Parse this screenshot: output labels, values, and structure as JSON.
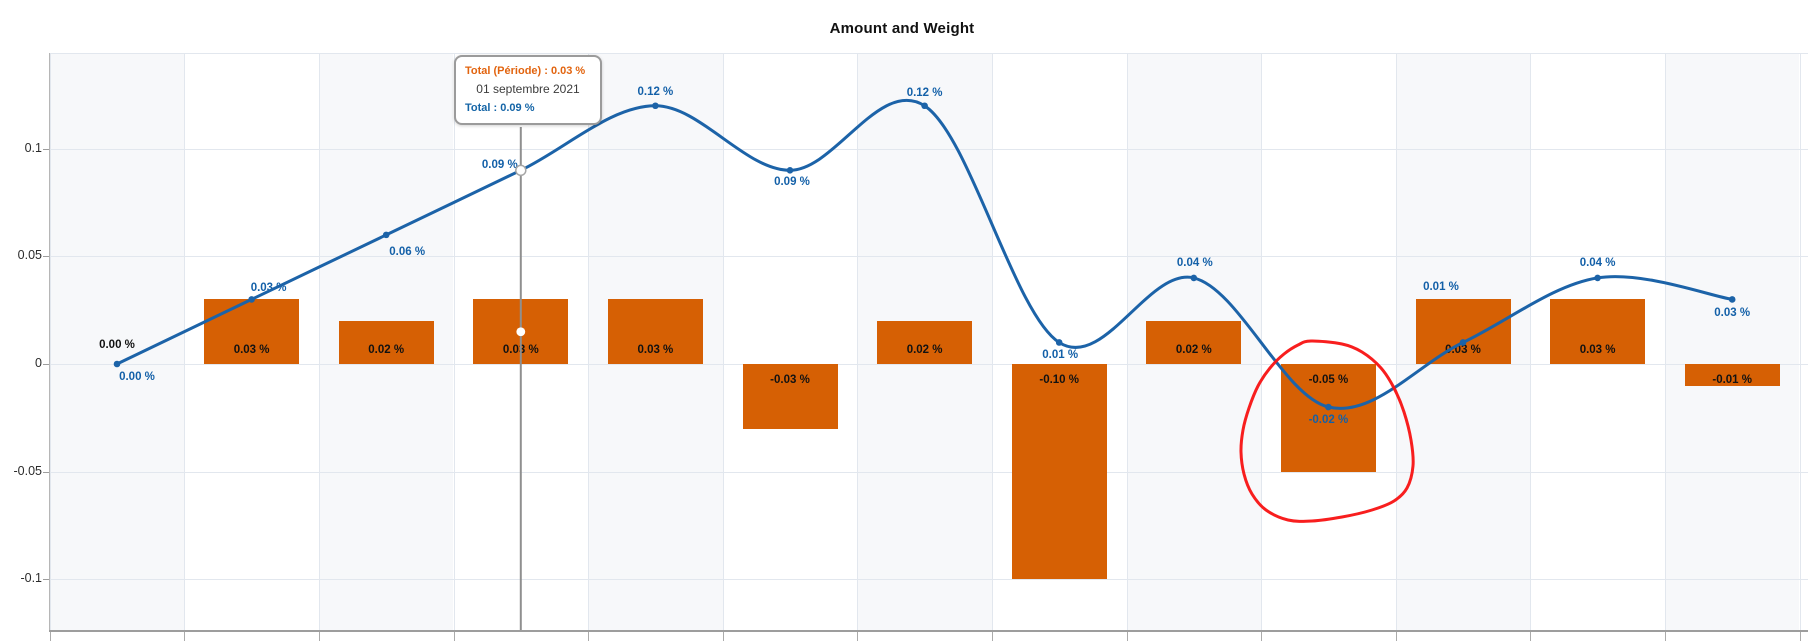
{
  "title": "Amount and Weight",
  "tooltip": {
    "series1_label": "Total (Période) : 0.03 %",
    "date": "01 septembre 2021",
    "series2_label": "Total : 0.09 %"
  },
  "y_axis": {
    "tick_labels": [
      "0.1",
      "0.05",
      "0",
      "-0.05",
      "-0.1"
    ]
  },
  "chart_data": {
    "type": "combo-bar-line",
    "title": "Amount and Weight",
    "point_count": 13,
    "x_labels_visible": false,
    "y_axis_ticks": [
      0.1,
      0.05,
      0,
      -0.05,
      -0.1
    ],
    "ylim": [
      -0.124,
      0.1445
    ],
    "grid": true,
    "legend": false,
    "background_stripes": "alternating-columns",
    "series": [
      {
        "name": "Total (Période)",
        "type": "bar",
        "color": "#D66004",
        "values": [
          0.0,
          0.03,
          0.02,
          0.03,
          0.03,
          -0.03,
          0.02,
          -0.1,
          0.02,
          -0.05,
          0.03,
          0.03,
          -0.01
        ],
        "point_labels": [
          "0.00 %",
          "0.03 %",
          "0.02 %",
          "0.03 %",
          "0.03 %",
          "-0.03 %",
          "0.02 %",
          "-0.10 %",
          "0.02 %",
          "-0.05 %",
          "0.03 %",
          "0.03 %",
          "-0.01 %"
        ]
      },
      {
        "name": "Total",
        "type": "line",
        "color": "#1C63A8",
        "values": [
          0.0,
          0.03,
          0.06,
          0.09,
          0.12,
          0.09,
          0.12,
          0.01,
          0.04,
          -0.02,
          0.01,
          0.04,
          0.03
        ],
        "point_labels": [
          "0.00 %",
          "0.03 %",
          "0.06 %",
          "0.09 %",
          "0.12 %",
          "0.09 %",
          "0.12 %",
          "0.01 %",
          "0.04 %",
          "-0.02 %",
          "0.01 %",
          "0.04 %",
          "0.03 %"
        ]
      }
    ],
    "crosshair": {
      "point_index": 4,
      "date": "01 septembre 2021",
      "bar_value_text": "Total (Période) : 0.03 %",
      "line_value_text": "Total : 0.09 %"
    },
    "annotation": {
      "shape": "hand-drawn-circle",
      "color": "#F81212",
      "around_point_index": 10
    }
  },
  "colors": {
    "bar_orange": "#D66004",
    "line_blue": "#1C63A8",
    "line_label_blue": "#1360A8",
    "bar_label_black": "#121212",
    "tooltip_orange": "#E2640F",
    "tooltip_blue": "#1565A7",
    "tooltip_date": "#3C3C3C",
    "tooltip_border": "#9B9B9B",
    "stripe": "#F7F8FA",
    "grid": "#E2E7EE",
    "axis": "#9D9D9D",
    "tick": "#ABABAB",
    "tracker": "#8F8F8F",
    "annotation_red": "#F81212",
    "title_color": "#111111"
  }
}
